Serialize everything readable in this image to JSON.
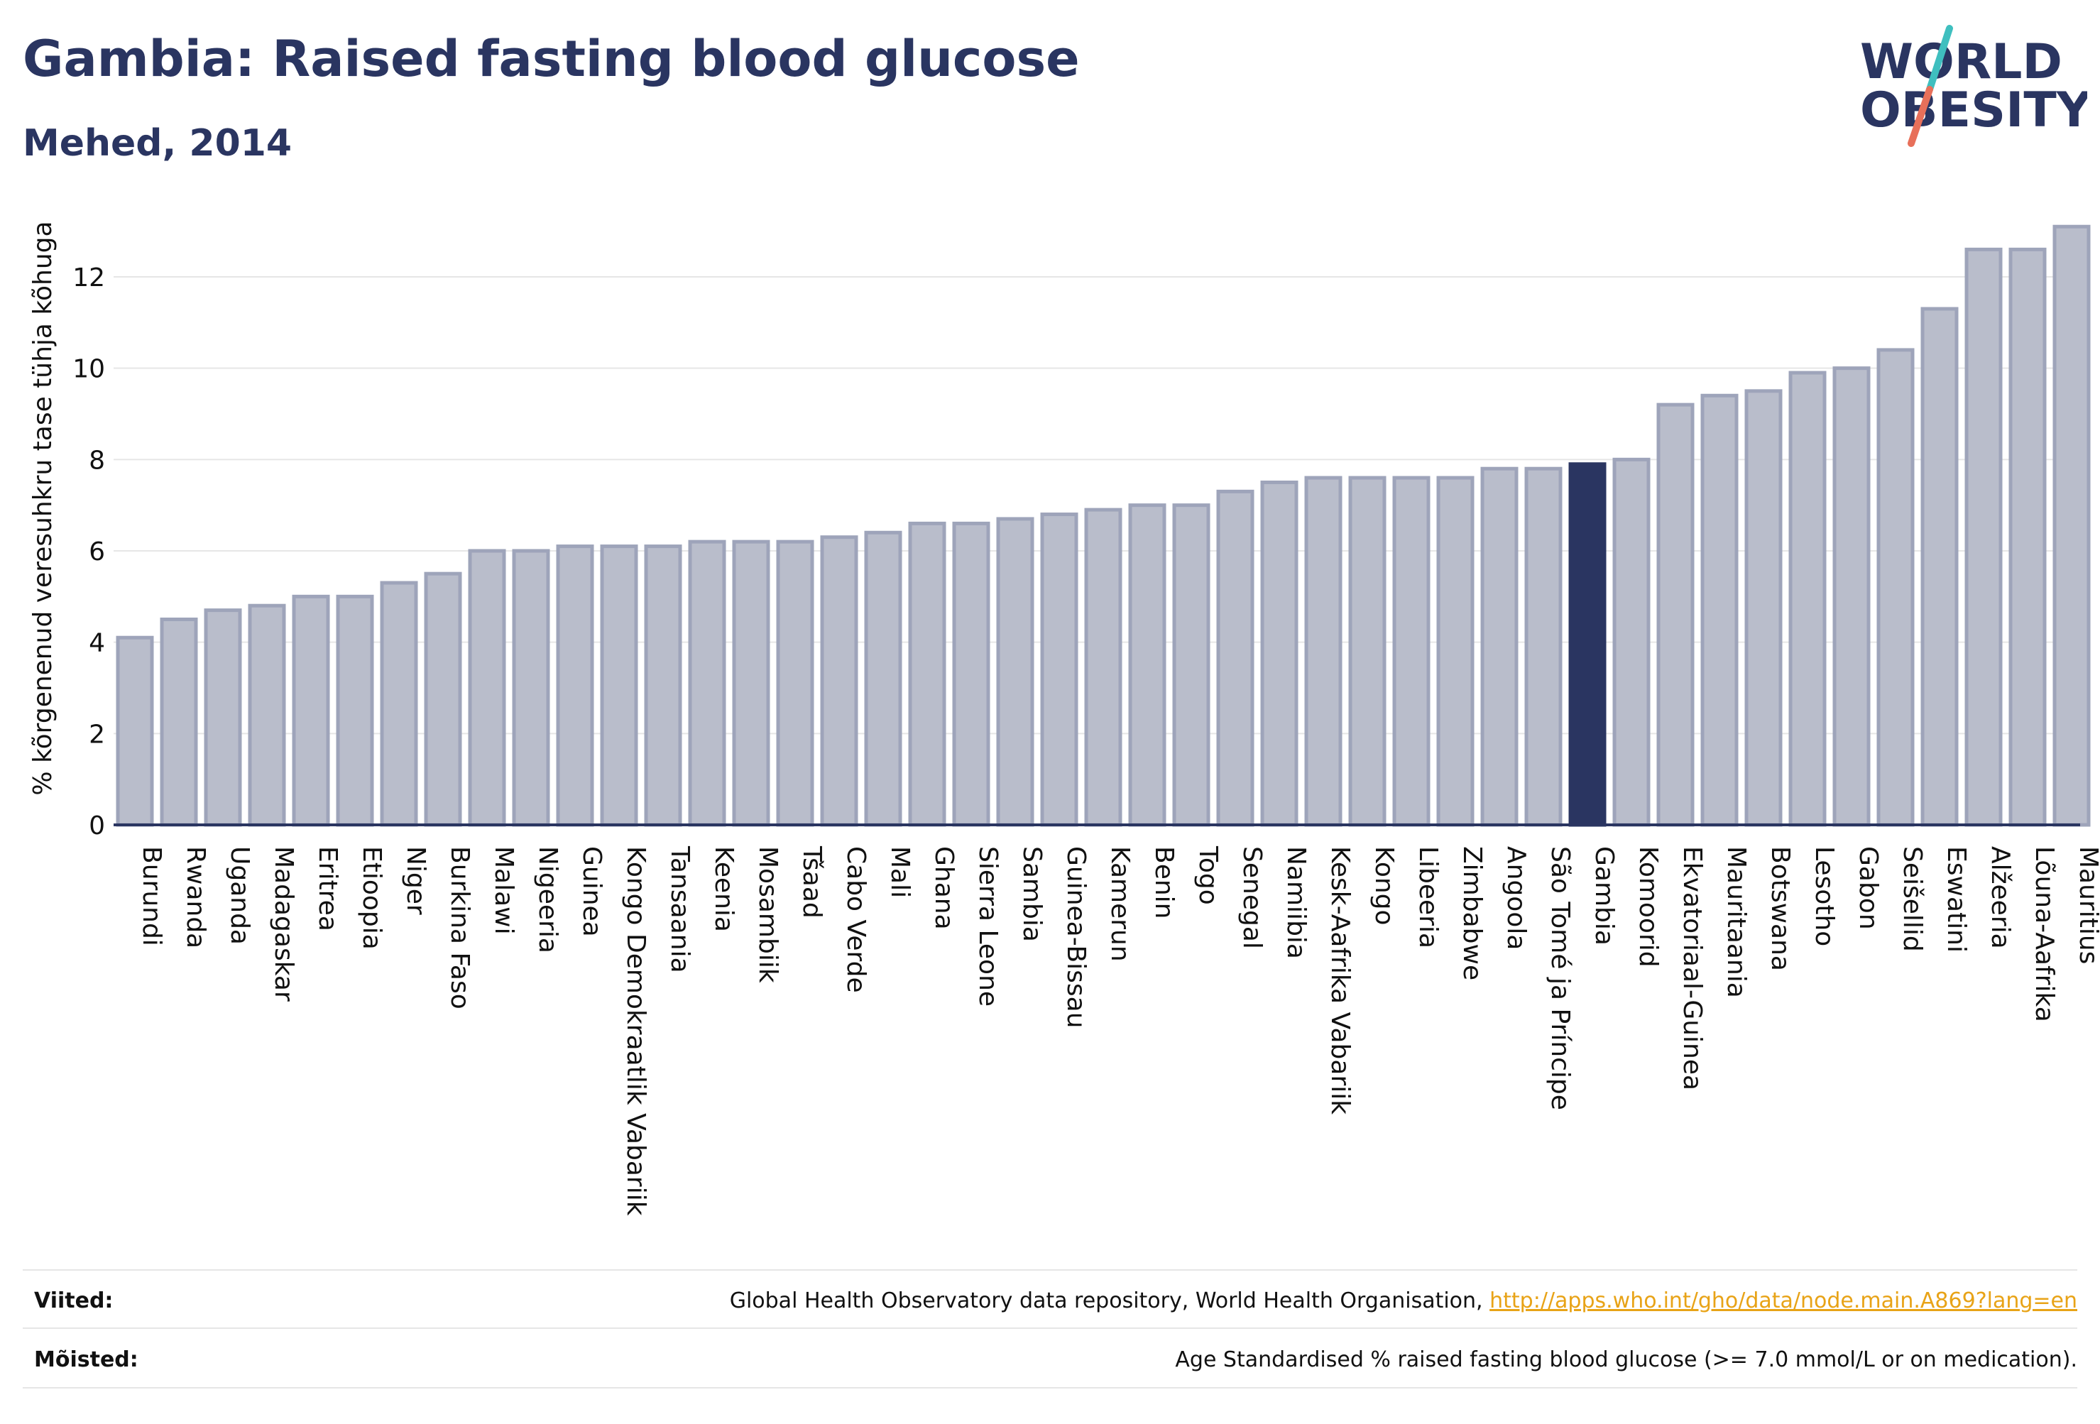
{
  "header": {
    "title": "Gambia: Raised fasting blood glucose",
    "subtitle": "Mehed, 2014"
  },
  "logo": {
    "line1": "WORLD",
    "line2": "OBESITY"
  },
  "colors": {
    "bar": "#b9bdcb",
    "bar_edge": "#9ea4ba",
    "highlight": "#2a3561",
    "grid": "#e6e6e6",
    "axis": "#2a3561",
    "logo_teal": "#3fbfbf",
    "logo_coral": "#e8705a",
    "link": "#e8a317"
  },
  "chart_data": {
    "type": "bar",
    "ylabel": "% kõrgenenud veresuhkru tase tühja kõhuga",
    "ylim": [
      0,
      13.5
    ],
    "yticks": [
      0,
      2,
      4,
      6,
      8,
      10,
      12
    ],
    "grid": true,
    "highlight": "Gambia",
    "categories": [
      "Burundi",
      "Rwanda",
      "Uganda",
      "Madagaskar",
      "Eritrea",
      "Etioopia",
      "Niger",
      "Burkina Faso",
      "Malawi",
      "Nigeeria",
      "Guinea",
      "Kongo Demokraatlik Vabariik",
      "Tansaania",
      "Keenia",
      "Mosambiik",
      "Tšaad",
      "Cabo Verde",
      "Mali",
      "Ghana",
      "Sierra Leone",
      "Sambia",
      "Guinea-Bissau",
      "Kamerun",
      "Benin",
      "Togo",
      "Senegal",
      "Namiibia",
      "Kesk-Aafrika Vabariik",
      "Kongo",
      "Libeeria",
      "Zimbabwe",
      "Angoola",
      "São Tomé ja Príncipe",
      "Gambia",
      "Komoorid",
      "Ekvatoriaal-Guinea",
      "Mauritaania",
      "Botswana",
      "Lesotho",
      "Gabon",
      "Seišellid",
      "Eswatini",
      "Alžeeria",
      "Lõuna-Aafrika",
      "Mauritius"
    ],
    "values": [
      4.1,
      4.5,
      4.7,
      4.8,
      5.0,
      5.0,
      5.3,
      5.5,
      6.0,
      6.0,
      6.1,
      6.1,
      6.1,
      6.2,
      6.2,
      6.2,
      6.3,
      6.4,
      6.6,
      6.6,
      6.7,
      6.8,
      6.9,
      7.0,
      7.0,
      7.3,
      7.5,
      7.6,
      7.6,
      7.6,
      7.6,
      7.8,
      7.8,
      7.9,
      8.0,
      9.2,
      9.4,
      9.5,
      9.9,
      10.0,
      10.4,
      11.3,
      12.6,
      12.6,
      13.1
    ]
  },
  "footer": {
    "sources_label": "Viited:",
    "sources_text": "Global Health Observatory data repository, World Health Organisation,",
    "sources_link": "http://apps.who.int/gho/data/node.main.A869?lang=en",
    "definitions_label": "Mõisted:",
    "definitions_text": "Age Standardised % raised fasting blood glucose (>= 7.0 mmol/L or on medication)."
  }
}
